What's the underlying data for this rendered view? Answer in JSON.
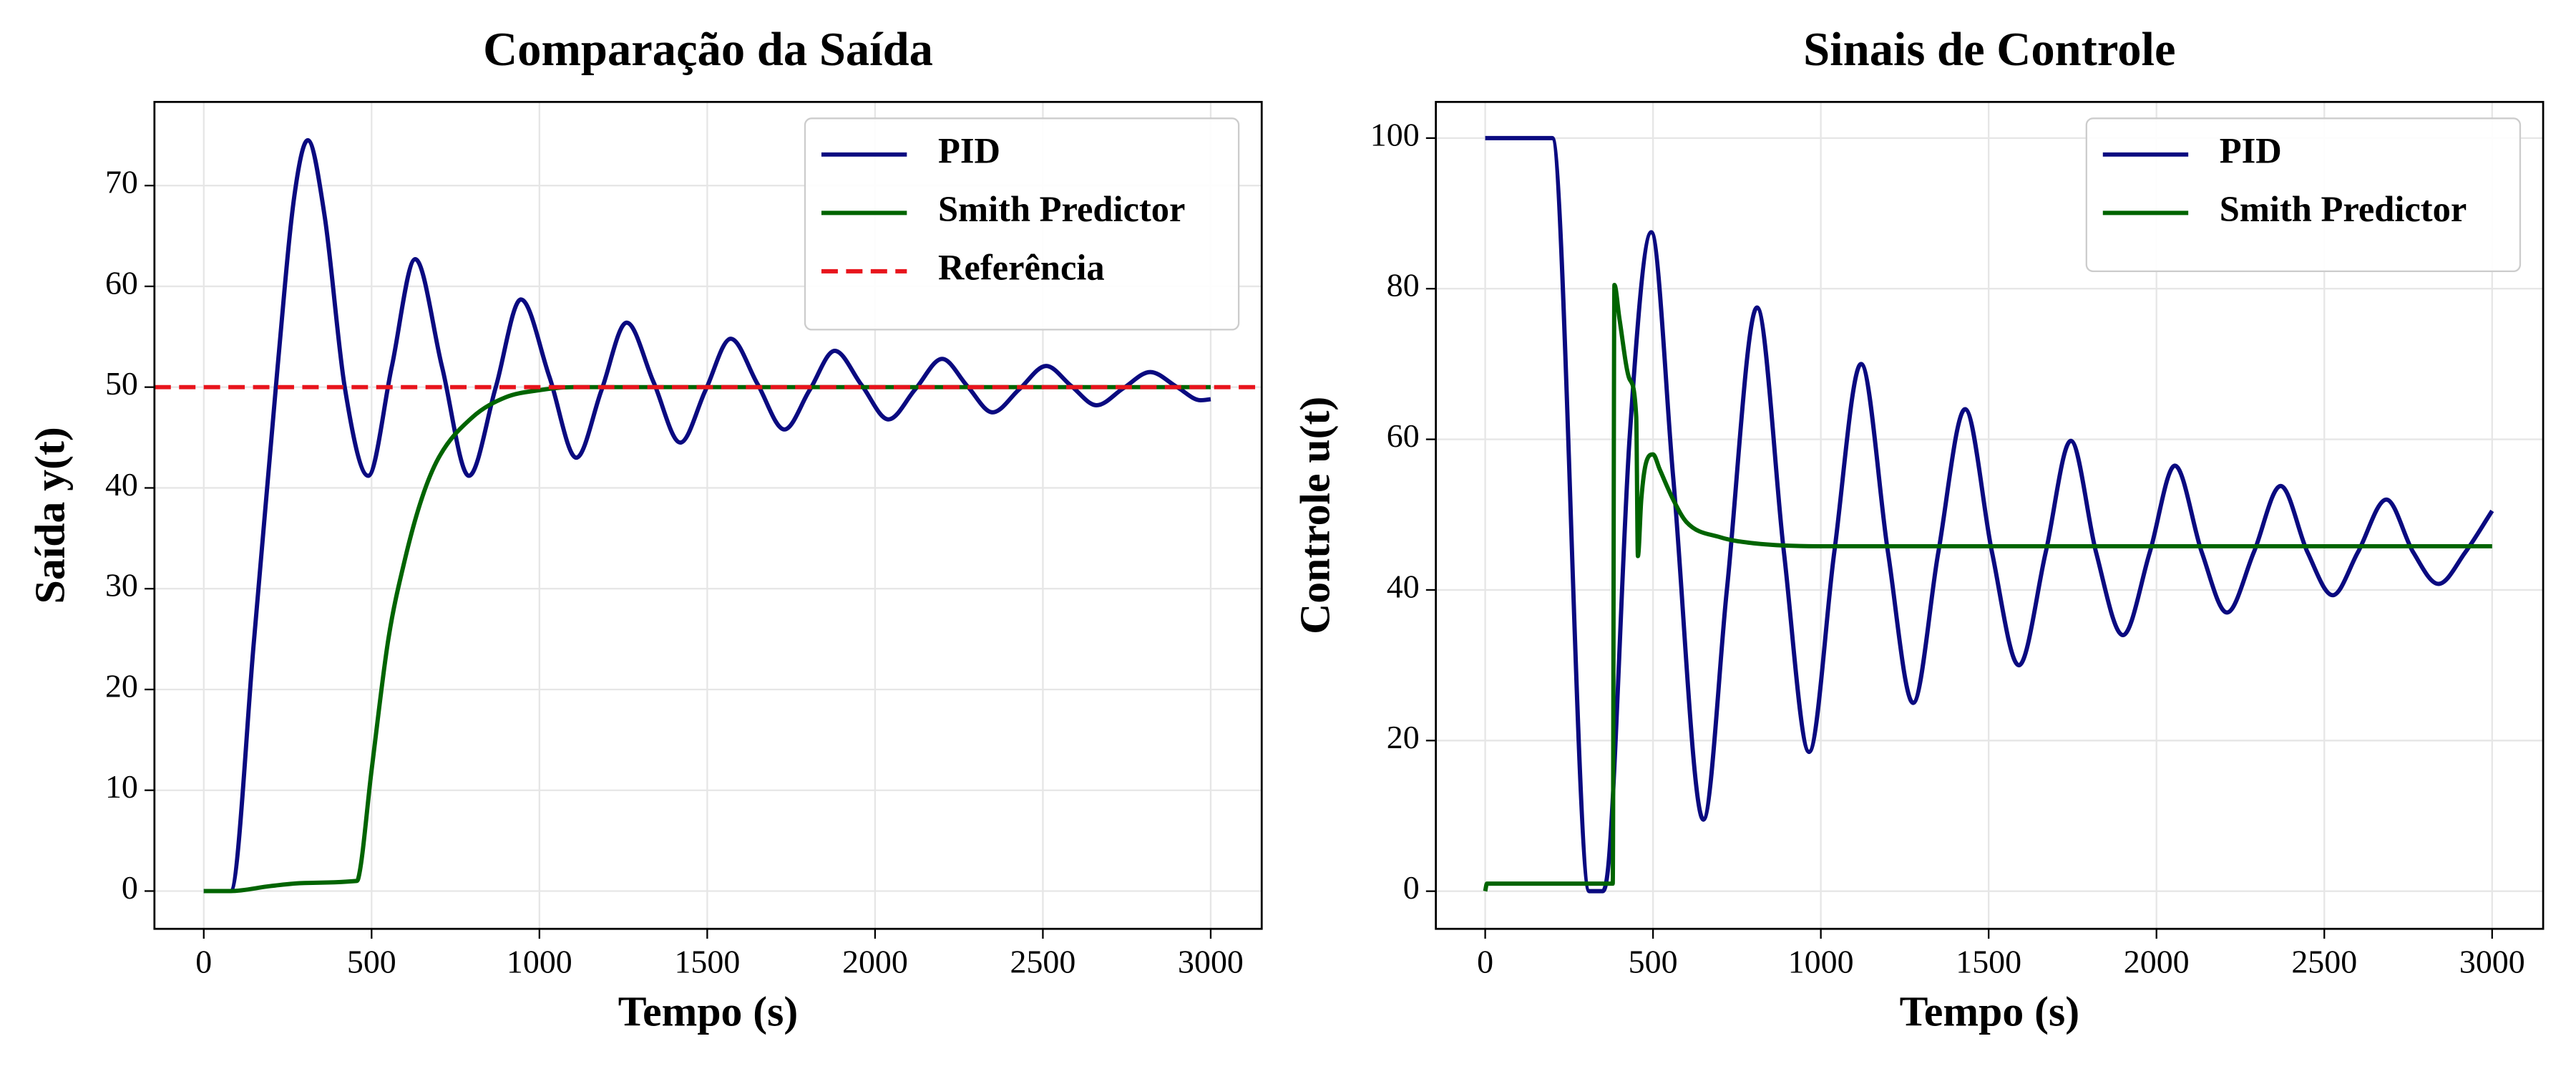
{
  "chart_data": [
    {
      "type": "line",
      "title": "Comparação da Saída",
      "xlabel": "Tempo (s)",
      "ylabel": "Saída y(t)",
      "xlim": [
        -147,
        3152
      ],
      "ylim": [
        -3.75,
        78.3
      ],
      "xticks": [
        0,
        500,
        1000,
        1500,
        2000,
        2500,
        3000
      ],
      "yticks": [
        0,
        10,
        20,
        30,
        40,
        50,
        60,
        70
      ],
      "grid": true,
      "legend": "upper right",
      "series": [
        {
          "name": "PID",
          "color": "#0a0a80",
          "x": [
            0,
            80,
            150,
            220,
            270,
            310,
            360,
            420,
            490,
            560,
            630,
            710,
            790,
            870,
            945,
            1030,
            1110,
            1185,
            1260,
            1340,
            1420,
            1495,
            1570,
            1650,
            1730,
            1805,
            1880,
            1960,
            2040,
            2120,
            2200,
            2275,
            2350,
            2430,
            2510,
            2585,
            2660,
            2740,
            2820,
            2900,
            2970,
            3000
          ],
          "values": [
            0,
            0,
            25,
            52,
            69,
            74.5,
            67,
            50,
            41.2,
            52,
            62.7,
            52,
            41.2,
            50,
            58.7,
            51,
            43,
            49.7,
            56.4,
            50.5,
            44.5,
            49.7,
            54.8,
            50.3,
            45.8,
            49.7,
            53.6,
            50.2,
            46.8,
            49.8,
            52.8,
            50.1,
            47.5,
            49.8,
            52.1,
            50.1,
            48.2,
            49.9,
            51.5,
            50,
            48.7,
            48.8
          ]
        },
        {
          "name": "Smith Predictor",
          "color": "#006400",
          "x": [
            0,
            80,
            200,
            300,
            455,
            460,
            500,
            550,
            600,
            650,
            700,
            800,
            900,
            1000,
            1100,
            3000
          ],
          "values": [
            0,
            0,
            0.5,
            0.8,
            1.0,
            1.2,
            12,
            25,
            33,
            39,
            43,
            47,
            49,
            49.7,
            50,
            50
          ]
        }
      ],
      "reference": {
        "name": "Referência",
        "value": 50,
        "color": "#e8141c",
        "linestyle": "dashed"
      }
    },
    {
      "type": "line",
      "title": "Sinais de Controle",
      "xlabel": "Tempo (s)",
      "ylabel": "Controle u(t)",
      "xlim": [
        -147,
        3152
      ],
      "ylim": [
        -5.0,
        104.8
      ],
      "xticks": [
        0,
        500,
        1000,
        1500,
        2000,
        2500,
        3000
      ],
      "yticks": [
        0,
        20,
        40,
        60,
        80,
        100
      ],
      "grid": true,
      "legend": "upper right",
      "series": [
        {
          "name": "PID",
          "color": "#0a0a80",
          "x": [
            0,
            200,
            310,
            350,
            370,
            430,
            495,
            560,
            650,
            720,
            810,
            890,
            965,
            1040,
            1120,
            1200,
            1275,
            1350,
            1430,
            1510,
            1590,
            1670,
            1745,
            1820,
            1900,
            1980,
            2055,
            2135,
            2210,
            2290,
            2370,
            2450,
            2525,
            2600,
            2685,
            2765,
            2840,
            2920,
            3000
          ],
          "values": [
            100,
            100,
            0,
            0,
            5,
            60,
            87.5,
            55,
            9.5,
            40,
            77.5,
            45,
            18.5,
            45,
            70,
            45,
            25,
            45,
            64,
            45,
            30,
            45,
            59.8,
            45,
            34,
            45,
            56.5,
            45,
            37,
            45,
            53.8,
            45,
            39.3,
            45,
            52,
            45,
            40.8,
            45,
            50.5
          ]
        },
        {
          "name": "Smith Predictor",
          "color": "#006400",
          "x": [
            0,
            5,
            380,
            385,
            400,
            430,
            450,
            455,
            465,
            480,
            500,
            520,
            560,
            600,
            700,
            800,
            1000,
            3000
          ],
          "values": [
            0,
            1,
            1,
            80.5,
            76,
            68,
            63,
            44.5,
            52,
            57,
            58,
            56,
            52,
            49,
            47,
            46.2,
            45.8,
            45.8
          ]
        }
      ]
    }
  ]
}
